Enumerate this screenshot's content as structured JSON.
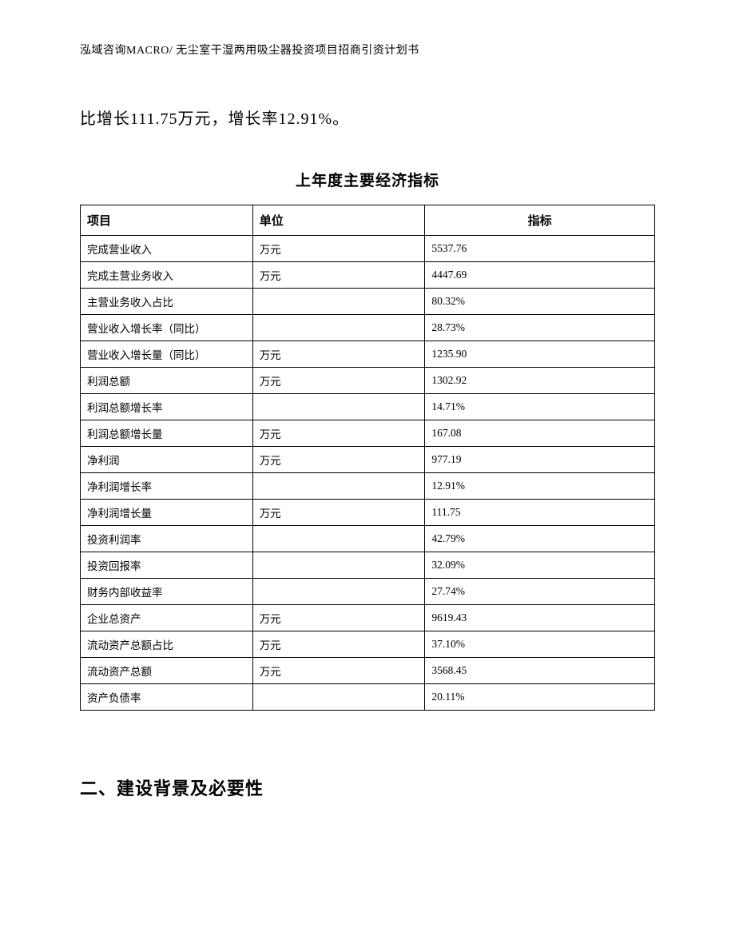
{
  "header": "泓域咨询MACRO/ 无尘室干湿两用吸尘器投资项目招商引资计划书",
  "intro": "比增长111.75万元，增长率12.91%。",
  "table": {
    "title": "上年度主要经济指标",
    "columns": [
      "项目",
      "单位",
      "指标"
    ],
    "rows": [
      [
        "完成营业收入",
        "万元",
        "5537.76"
      ],
      [
        "完成主营业务收入",
        "万元",
        "4447.69"
      ],
      [
        "主营业务收入占比",
        "",
        "80.32%"
      ],
      [
        "营业收入增长率（同比）",
        "",
        "28.73%"
      ],
      [
        "营业收入增长量（同比）",
        "万元",
        "1235.90"
      ],
      [
        "利润总额",
        "万元",
        "1302.92"
      ],
      [
        "利润总额增长率",
        "",
        "14.71%"
      ],
      [
        "利润总额增长量",
        "万元",
        "167.08"
      ],
      [
        "净利润",
        "万元",
        "977.19"
      ],
      [
        "净利润增长率",
        "",
        "12.91%"
      ],
      [
        "净利润增长量",
        "万元",
        "111.75"
      ],
      [
        "投资利润率",
        "",
        "42.79%"
      ],
      [
        "投资回报率",
        "",
        "32.09%"
      ],
      [
        "财务内部收益率",
        "",
        "27.74%"
      ],
      [
        "企业总资产",
        "万元",
        "9619.43"
      ],
      [
        "流动资产总额占比",
        "万元",
        "37.10%"
      ],
      [
        "流动资产总额",
        "万元",
        "3568.45"
      ],
      [
        "资产负债率",
        "",
        "20.11%"
      ]
    ]
  },
  "section_heading": "二、建设背景及必要性"
}
